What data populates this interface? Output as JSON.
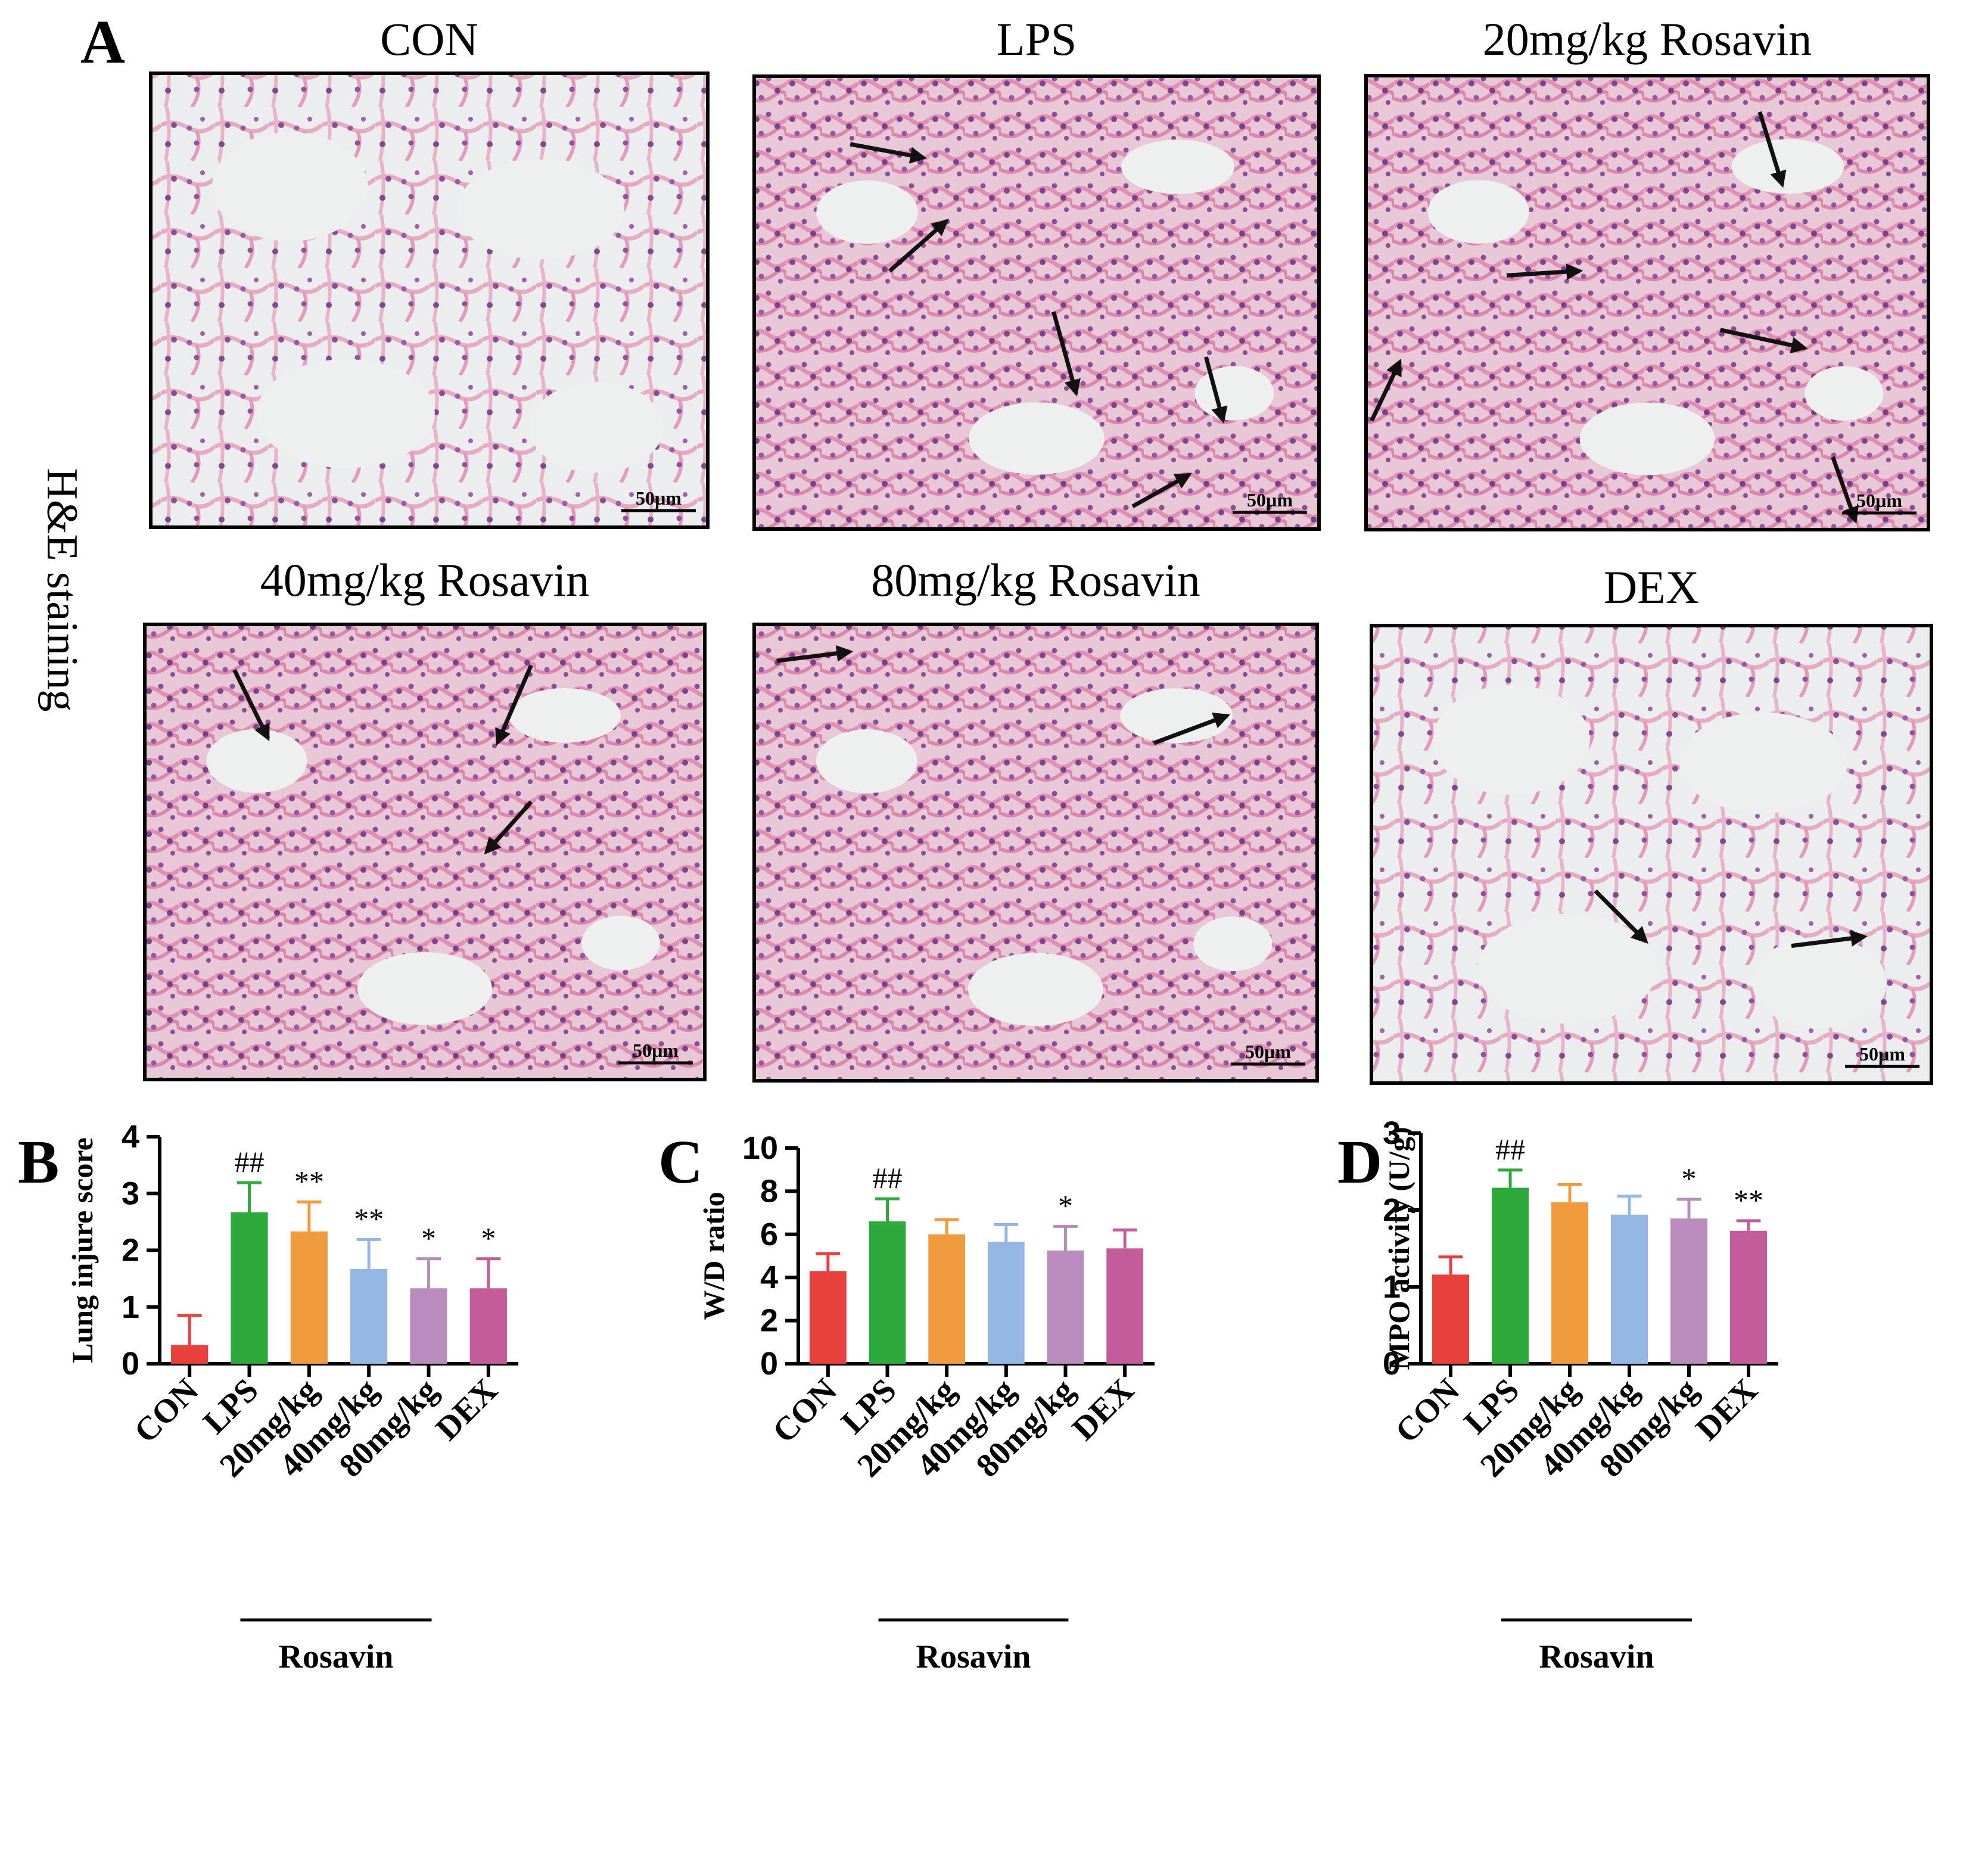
{
  "figure": {
    "panel_a": {
      "letter": "A",
      "side_label": "H&E staining",
      "scale_bar": "50µm",
      "images": [
        {
          "title": "CON",
          "arrows": []
        },
        {
          "title": "LPS",
          "arrows": [
            [
              0.17,
              0.15,
              0.3,
              0.18
            ],
            [
              0.24,
              0.43,
              0.34,
              0.32
            ],
            [
              0.53,
              0.52,
              0.57,
              0.7
            ],
            [
              0.8,
              0.62,
              0.83,
              0.76
            ],
            [
              0.67,
              0.95,
              0.77,
              0.88
            ]
          ]
        },
        {
          "title": "20mg/kg Rosavin",
          "arrows": [
            [
              0.7,
              0.08,
              0.74,
              0.24
            ],
            [
              0.25,
              0.44,
              0.38,
              0.43
            ],
            [
              0.63,
              0.56,
              0.78,
              0.6
            ],
            [
              0.01,
              0.76,
              0.06,
              0.63
            ],
            [
              0.83,
              0.84,
              0.87,
              0.98
            ]
          ]
        },
        {
          "title": "40mg/kg Rosavin",
          "arrows": [
            [
              0.16,
              0.1,
              0.22,
              0.25
            ],
            [
              0.69,
              0.09,
              0.63,
              0.26
            ],
            [
              0.69,
              0.39,
              0.61,
              0.5
            ]
          ]
        },
        {
          "title": "80mg/kg Rosavin",
          "arrows": [
            [
              0.04,
              0.08,
              0.17,
              0.06
            ],
            [
              0.71,
              0.26,
              0.84,
              0.2
            ]
          ]
        },
        {
          "title": "DEX",
          "arrows": [
            [
              0.4,
              0.58,
              0.49,
              0.69
            ],
            [
              0.75,
              0.7,
              0.88,
              0.68
            ]
          ]
        }
      ]
    }
  },
  "chart_data": [
    {
      "type": "bar",
      "panel": "B",
      "ylabel": "Lung injure score",
      "ylim": [
        0,
        4
      ],
      "yticks": [
        0,
        1,
        2,
        3,
        4
      ],
      "categories": [
        "CON",
        "LPS",
        "20mg/kg",
        "40mg/kg",
        "80mg/kg",
        "DEX"
      ],
      "values": [
        0.33,
        2.67,
        2.33,
        1.67,
        1.33,
        1.33
      ],
      "errors": [
        0.52,
        0.52,
        0.52,
        0.52,
        0.52,
        0.52
      ],
      "significance": [
        "",
        "##",
        "**",
        "**",
        "*",
        "*"
      ],
      "colors": [
        "#e8403d",
        "#2eaa3c",
        "#f19b3f",
        "#95b7e3",
        "#b98cbd",
        "#c45b9b"
      ],
      "group_label": "Rosavin"
    },
    {
      "type": "bar",
      "panel": "C",
      "ylabel": "W/D ratio",
      "ylim": [
        0,
        10
      ],
      "yticks": [
        0,
        2,
        4,
        6,
        8,
        10
      ],
      "categories": [
        "CON",
        "LPS",
        "20mg/kg",
        "40mg/kg",
        "80mg/kg",
        "DEX"
      ],
      "values": [
        4.3,
        6.6,
        6.0,
        5.65,
        5.25,
        5.35
      ],
      "errors": [
        0.8,
        1.05,
        0.68,
        0.8,
        1.12,
        0.85
      ],
      "significance": [
        "",
        "##",
        "",
        "",
        "*",
        ""
      ],
      "colors": [
        "#e8403d",
        "#2eaa3c",
        "#f19b3f",
        "#95b7e3",
        "#b98cbd",
        "#c45b9b"
      ],
      "group_label": "Rosavin"
    },
    {
      "type": "bar",
      "panel": "D",
      "ylabel": "MPO activity (U/g)",
      "ylim": [
        0,
        3
      ],
      "yticks": [
        0,
        1,
        2,
        3
      ],
      "categories": [
        "CON",
        "LPS",
        "20mg/kg",
        "40mg/kg",
        "80mg/kg",
        "DEX"
      ],
      "values": [
        1.16,
        2.29,
        2.1,
        1.94,
        1.89,
        1.73
      ],
      "errors": [
        0.23,
        0.23,
        0.23,
        0.24,
        0.25,
        0.13
      ],
      "significance": [
        "",
        "##",
        "",
        "",
        "*",
        "**"
      ],
      "colors": [
        "#e8403d",
        "#2eaa3c",
        "#f19b3f",
        "#95b7e3",
        "#b98cbd",
        "#c45b9b"
      ],
      "group_label": "Rosavin"
    }
  ]
}
